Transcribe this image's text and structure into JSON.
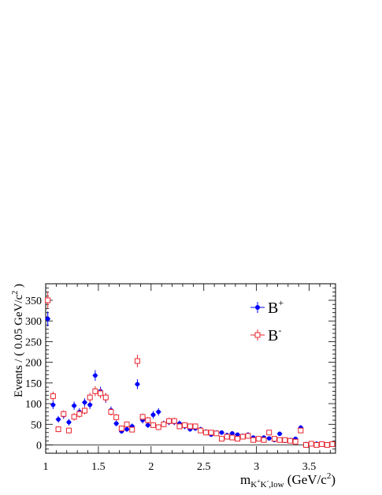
{
  "chart_data": {
    "type": "scatter",
    "title": "",
    "ylabel": "Events / ( 0.05 GeV/c",
    "ylabel_sup": "2",
    "ylabel_close": " )",
    "xlabel": {
      "main": "m",
      "sub": "K",
      "sub_sup1": "+",
      "sub_mid": "K",
      "sub_sup2": "-",
      "sub_end": ",low",
      "unit": " (GeV/c",
      "unit_sup": "2",
      "unit_close": ")"
    },
    "xlim": [
      1.0,
      3.75
    ],
    "ylim": [
      -20,
      390
    ],
    "x_ticks": [
      1,
      1.5,
      2,
      2.5,
      3,
      3.5
    ],
    "x_tick_labels": [
      "1",
      "1.5",
      "2",
      "2.5",
      "3",
      "3.5"
    ],
    "y_ticks": [
      0,
      50,
      100,
      150,
      200,
      250,
      300,
      350
    ],
    "y_tick_labels": [
      "0",
      "50",
      "100",
      "150",
      "200",
      "250",
      "300",
      "350"
    ],
    "legend_position": "top-right",
    "grid": false,
    "series": [
      {
        "name": "B",
        "name_sup": "+",
        "color": "#0000ff",
        "marker": "filled-circle",
        "x": [
          1.02,
          1.07,
          1.12,
          1.17,
          1.22,
          1.27,
          1.32,
          1.37,
          1.42,
          1.47,
          1.52,
          1.57,
          1.62,
          1.67,
          1.72,
          1.77,
          1.82,
          1.87,
          1.92,
          1.97,
          2.02,
          2.07,
          2.12,
          2.17,
          2.22,
          2.27,
          2.32,
          2.37,
          2.42,
          2.47,
          2.52,
          2.57,
          2.62,
          2.67,
          2.72,
          2.77,
          2.82,
          2.87,
          2.92,
          2.97,
          3.02,
          3.07,
          3.12,
          3.17,
          3.22,
          3.27,
          3.32,
          3.37,
          3.42,
          3.47,
          3.52,
          3.57,
          3.62,
          3.67,
          3.72
        ],
        "y": [
          305,
          97,
          62,
          72,
          55,
          95,
          80,
          103,
          97,
          168,
          130,
          113,
          84,
          52,
          33,
          38,
          45,
          147,
          60,
          48,
          73,
          80,
          52,
          55,
          55,
          52,
          45,
          38,
          40,
          38,
          32,
          25,
          30,
          30,
          24,
          28,
          25,
          22,
          25,
          18,
          14,
          18,
          16,
          12,
          27,
          10,
          12,
          15,
          42,
          2,
          4,
          3,
          2,
          1,
          3
        ],
        "err": [
          18,
          10,
          8,
          9,
          8,
          10,
          9,
          10,
          10,
          13,
          11,
          11,
          9,
          7,
          6,
          6,
          7,
          12,
          8,
          7,
          9,
          9,
          7,
          7,
          7,
          7,
          7,
          6,
          6,
          6,
          6,
          5,
          5,
          5,
          5,
          5,
          5,
          5,
          5,
          4,
          4,
          4,
          4,
          3,
          5,
          3,
          3,
          4,
          6,
          2,
          2,
          2,
          2,
          1,
          2
        ]
      },
      {
        "name": "B",
        "name_sup": "-",
        "color": "#e8252e",
        "marker": "open-square",
        "x": [
          1.02,
          1.07,
          1.12,
          1.17,
          1.22,
          1.27,
          1.32,
          1.37,
          1.42,
          1.47,
          1.52,
          1.57,
          1.62,
          1.67,
          1.72,
          1.77,
          1.82,
          1.87,
          1.92,
          1.97,
          2.02,
          2.07,
          2.12,
          2.17,
          2.22,
          2.27,
          2.32,
          2.37,
          2.42,
          2.47,
          2.52,
          2.57,
          2.62,
          2.67,
          2.72,
          2.77,
          2.82,
          2.87,
          2.92,
          2.97,
          3.02,
          3.07,
          3.12,
          3.17,
          3.22,
          3.27,
          3.32,
          3.37,
          3.42,
          3.47,
          3.52,
          3.57,
          3.62,
          3.67,
          3.72
        ],
        "y": [
          350,
          118,
          38,
          75,
          35,
          68,
          75,
          83,
          115,
          130,
          125,
          115,
          80,
          67,
          40,
          50,
          37,
          203,
          68,
          60,
          48,
          43,
          50,
          58,
          58,
          45,
          48,
          45,
          45,
          35,
          30,
          30,
          28,
          15,
          20,
          18,
          15,
          20,
          22,
          12,
          15,
          12,
          30,
          15,
          12,
          12,
          10,
          8,
          35,
          0,
          3,
          0,
          2,
          0,
          2
        ],
        "err": [
          20,
          11,
          7,
          9,
          7,
          9,
          9,
          9,
          11,
          12,
          12,
          11,
          9,
          8,
          7,
          7,
          6,
          15,
          8,
          8,
          7,
          7,
          7,
          8,
          8,
          7,
          7,
          7,
          7,
          6,
          6,
          6,
          5,
          4,
          5,
          4,
          4,
          5,
          5,
          4,
          4,
          4,
          6,
          4,
          4,
          4,
          3,
          3,
          6,
          1,
          2,
          1,
          2,
          1,
          2
        ]
      }
    ]
  }
}
